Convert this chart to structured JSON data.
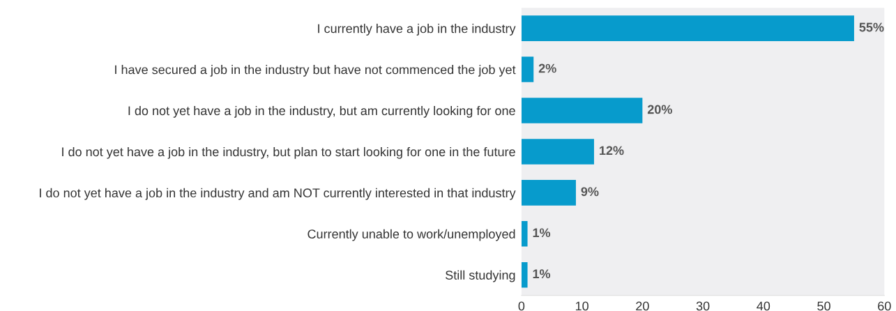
{
  "chart_data": {
    "type": "bar",
    "orientation": "horizontal",
    "categories": [
      "I currently have a job in the industry",
      "I have secured a job in the industry but have not commenced the job yet",
      "I do not yet have a job in the industry, but am currently looking for one",
      "I do not yet have a job in the industry, but plan to start looking for one in the future",
      "I do not yet have a job in the industry and am NOT currently interested in that industry",
      "Currently unable to work/unemployed",
      "Still studying"
    ],
    "values": [
      55,
      2,
      20,
      12,
      9,
      1,
      1
    ],
    "value_labels": [
      "55%",
      "2%",
      "20%",
      "12%",
      "9%",
      "1%",
      "1%"
    ],
    "color": "#079bcc",
    "xlim": [
      0,
      60
    ],
    "xticks": [
      0,
      10,
      20,
      30,
      40,
      50,
      60
    ],
    "grid": false
  }
}
